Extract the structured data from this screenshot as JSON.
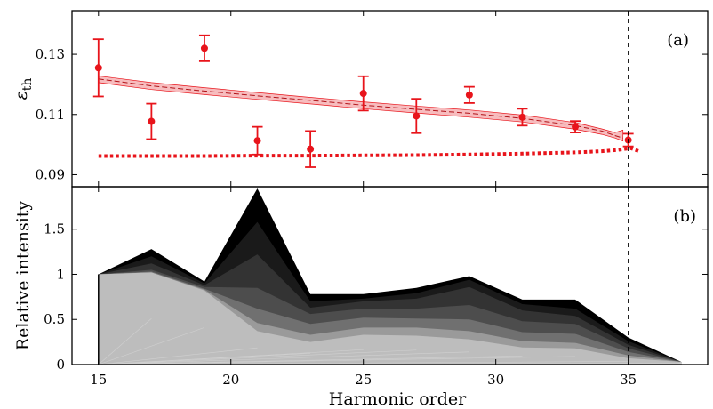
{
  "chart_data": [
    {
      "panel": "(a)",
      "type": "scatter",
      "ylabel_main": "ε",
      "ylabel_sub": "th",
      "xlim": [
        14,
        38
      ],
      "ylim": [
        0.086,
        0.1445
      ],
      "yticks": [
        0.09,
        0.11,
        0.13
      ],
      "ytick_labels": [
        "0.09",
        "0.11",
        "0.13"
      ],
      "colors": {
        "measured": "#e8141b",
        "band": "#f4a6a8",
        "dotted": "#e8141b"
      },
      "measured": {
        "x": [
          15,
          17,
          19,
          21,
          23,
          25,
          27,
          29,
          31,
          33,
          35
        ],
        "y": [
          0.1255,
          0.1077,
          0.132,
          0.1013,
          0.0985,
          0.117,
          0.1095,
          0.1165,
          0.1091,
          0.1059,
          0.1015
        ],
        "err": [
          0.0095,
          0.0059,
          0.0043,
          0.0046,
          0.006,
          0.0057,
          0.0057,
          0.0027,
          0.0028,
          0.0019,
          0.0021
        ]
      },
      "band": {
        "x": [
          15,
          17,
          19,
          21,
          23,
          25,
          27,
          29,
          31,
          33,
          34,
          34.5,
          34.8
        ],
        "upper": [
          0.1228,
          0.1206,
          0.1189,
          0.1173,
          0.1157,
          0.1142,
          0.1128,
          0.1115,
          0.1098,
          0.1073,
          0.1052,
          0.104,
          0.1048
        ],
        "center": [
          0.1218,
          0.1195,
          0.1178,
          0.1162,
          0.1147,
          0.1131,
          0.1117,
          0.1104,
          0.1087,
          0.1063,
          0.1045,
          0.103,
          0.1022
        ],
        "lower": [
          0.1206,
          0.1183,
          0.1166,
          0.115,
          0.1135,
          0.1119,
          0.1105,
          0.1091,
          0.1075,
          0.1051,
          0.1034,
          0.1022,
          0.1012
        ]
      },
      "dotted_curve": {
        "x": [
          15,
          17,
          19,
          21,
          23,
          25,
          27,
          29,
          31,
          33,
          34,
          34.6,
          35.1,
          35.4
        ],
        "y": [
          0.0962,
          0.0962,
          0.0962,
          0.0963,
          0.0963,
          0.0964,
          0.0965,
          0.0967,
          0.097,
          0.0974,
          0.0978,
          0.0982,
          0.0988,
          0.0978
        ]
      },
      "vline_x": 35,
      "label_position": "top-right"
    },
    {
      "panel": "(b)",
      "type": "area",
      "xlabel": "Harmonic order",
      "ylabel": "Relative intensity",
      "xlim": [
        14,
        38
      ],
      "ylim": [
        0,
        1.97
      ],
      "xticks": [
        15,
        20,
        25,
        30,
        35
      ],
      "xtick_labels": [
        "15",
        "20",
        "25",
        "30",
        "35"
      ],
      "yticks": [
        0,
        0.5,
        1,
        1.5
      ],
      "ytick_labels": [
        "0",
        "0.5",
        "1",
        "1.5"
      ],
      "x": [
        15,
        17,
        19,
        21,
        23,
        25,
        27,
        29,
        31,
        33,
        35,
        37
      ],
      "layers": [
        {
          "color": "#000000",
          "values": [
            1.0,
            1.28,
            0.92,
            1.95,
            0.78,
            0.78,
            0.85,
            0.98,
            0.72,
            0.72,
            0.3,
            0.03
          ]
        },
        {
          "color": "#1a1a1a",
          "values": [
            1.0,
            1.2,
            0.9,
            1.58,
            0.7,
            0.73,
            0.79,
            0.94,
            0.67,
            0.62,
            0.26,
            0.03
          ]
        },
        {
          "color": "#333333",
          "values": [
            1.0,
            1.12,
            0.88,
            1.22,
            0.63,
            0.7,
            0.73,
            0.86,
            0.6,
            0.54,
            0.22,
            0.03
          ]
        },
        {
          "color": "#4d4d4d",
          "values": [
            1.0,
            1.05,
            0.86,
            0.85,
            0.56,
            0.62,
            0.62,
            0.66,
            0.48,
            0.45,
            0.18,
            0.03
          ]
        },
        {
          "color": "#707070",
          "values": [
            1.0,
            1.03,
            0.84,
            0.62,
            0.45,
            0.52,
            0.51,
            0.5,
            0.36,
            0.34,
            0.14,
            0.03
          ]
        },
        {
          "color": "#9a9a9a",
          "values": [
            1.0,
            1.02,
            0.83,
            0.46,
            0.33,
            0.41,
            0.41,
            0.37,
            0.26,
            0.24,
            0.1,
            0.03
          ]
        },
        {
          "color": "#bdbdbd",
          "values": [
            1.0,
            1.02,
            0.82,
            0.37,
            0.25,
            0.33,
            0.32,
            0.28,
            0.19,
            0.18,
            0.07,
            0.03
          ]
        }
      ],
      "vline_x": 35,
      "label_position": "top-right"
    }
  ]
}
